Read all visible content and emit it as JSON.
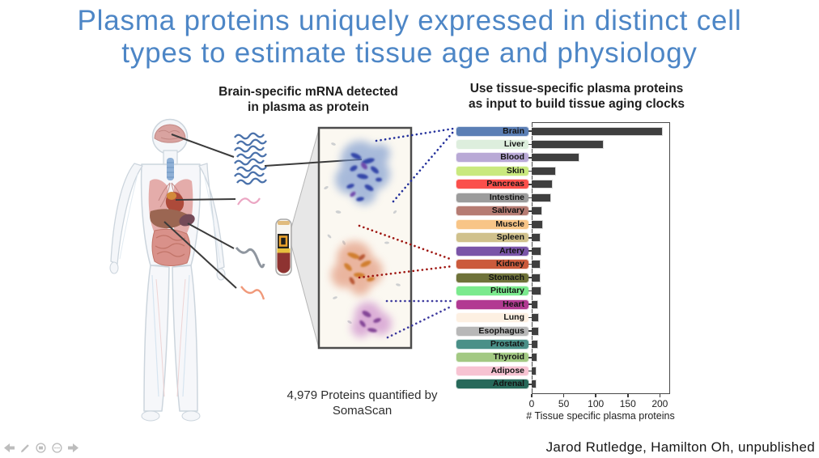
{
  "title": {
    "line1": "Plasma proteins uniquely expressed in distinct cell",
    "line2": "types to estimate tissue age and physiology",
    "color": "#4d86c6"
  },
  "attribution": "Jarod Rutledge, Hamilton Oh, unpublished",
  "left_panel": {
    "caption_line1": "Brain-specific mRNA detected",
    "caption_line2": "in plasma as protein",
    "footnote_line1": "4,979 Proteins quantified by",
    "footnote_line2": "SomaScan"
  },
  "right_panel": {
    "heading_line1": "Use tissue-specific plasma proteins",
    "heading_line2": "as input to build tissue aging clocks"
  },
  "chart_data": {
    "type": "bar",
    "orientation": "horizontal",
    "title": "Use tissue-specific plasma proteins as input to build tissue aging clocks",
    "xlabel": "# Tissue specific plasma proteins",
    "xlim": [
      0,
      216
    ],
    "xticks": [
      0,
      50,
      100,
      150,
      200
    ],
    "grid": false,
    "legend": "none",
    "bar_color": "#3f3f3f",
    "categories": [
      "Brain",
      "Liver",
      "Blood",
      "Skin",
      "Pancreas",
      "Intestine",
      "Salivary",
      "Muscle",
      "Spleen",
      "Artery",
      "Kidney",
      "Stomach",
      "Pituitary",
      "Heart",
      "Lung",
      "Esophagus",
      "Prostate",
      "Thyroid",
      "Adipose",
      "Adrenal"
    ],
    "values": [
      205,
      113,
      75,
      38,
      33,
      30,
      17,
      18,
      14,
      15,
      14,
      14,
      15,
      10,
      11,
      11,
      10,
      9,
      7,
      7
    ],
    "label_pill_colors": [
      "#5b7fb5",
      "#ddeedd",
      "#b9a9d6",
      "#c9e97e",
      "#fb4f4b",
      "#9c9c9c",
      "#b67c73",
      "#f8c587",
      "#d0c18c",
      "#7a55a8",
      "#cb5a3c",
      "#6e7239",
      "#7bea8e",
      "#b23a92",
      "#fdf0e2",
      "#b8b8b8",
      "#4a9088",
      "#a3c983",
      "#f7c3d2",
      "#27695a"
    ],
    "label_text_color": "#141414"
  },
  "icons": {
    "presenter_controls": [
      "prev-slide-arrow",
      "pen-tool",
      "slide-overview",
      "more-options",
      "next-slide-arrow"
    ],
    "illustration": [
      "human-body",
      "mrna-strands-blue",
      "mrna-strand-pink",
      "mrna-strand-gray",
      "mrna-strand-salmon",
      "blood-tube",
      "magnifier-cone",
      "plasma-magnified-panel"
    ]
  },
  "colors": {
    "accent_blue": "#4d86c6",
    "bar": "#3f3f3f",
    "connector_brain": "#23309b",
    "connector_kidney": "#9e1510",
    "connector_heart": "#3d3a9e",
    "panel_bg": "#fbf8f1"
  }
}
